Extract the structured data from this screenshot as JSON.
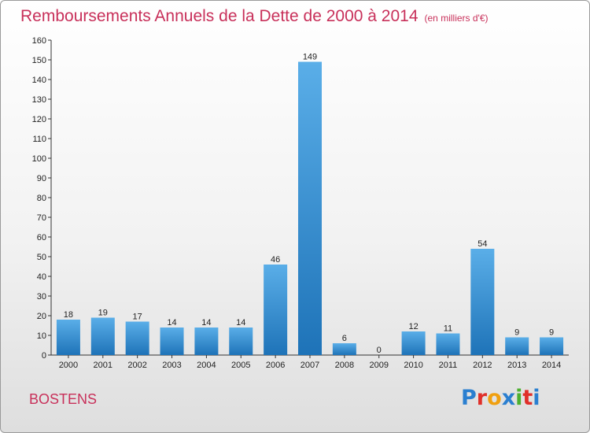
{
  "header": {
    "title": "Remboursements Annuels de la Dette de 2000 à 2014",
    "subtitle": "(en milliers d'€)"
  },
  "footer": {
    "city": "BOSTENS",
    "logo": "Proxiti"
  },
  "colors": {
    "title": "#c8305a",
    "bar_light": "#5aaee8",
    "bar_dark": "#1e73b8",
    "logo_letters": [
      "#2a7fd0",
      "#e0302a",
      "#f0a010",
      "#2a7fd0",
      "#4cb030",
      "#e0302a",
      "#2a7fd0"
    ]
  },
  "chart_data": {
    "type": "bar",
    "title": "Remboursements Annuels de la Dette de 2000 à 2014",
    "xlabel": "",
    "ylabel": "",
    "ylim": [
      0,
      160
    ],
    "yticks": [
      0,
      10,
      20,
      30,
      40,
      50,
      60,
      70,
      80,
      90,
      100,
      110,
      120,
      130,
      140,
      150,
      160
    ],
    "grid": false,
    "categories": [
      "2000",
      "2001",
      "2002",
      "2003",
      "2004",
      "2005",
      "2006",
      "2007",
      "2008",
      "2009",
      "2010",
      "2011",
      "2012",
      "2013",
      "2014"
    ],
    "values": [
      18,
      19,
      17,
      14,
      14,
      14,
      46,
      149,
      6,
      0,
      12,
      11,
      54,
      9,
      9
    ]
  }
}
